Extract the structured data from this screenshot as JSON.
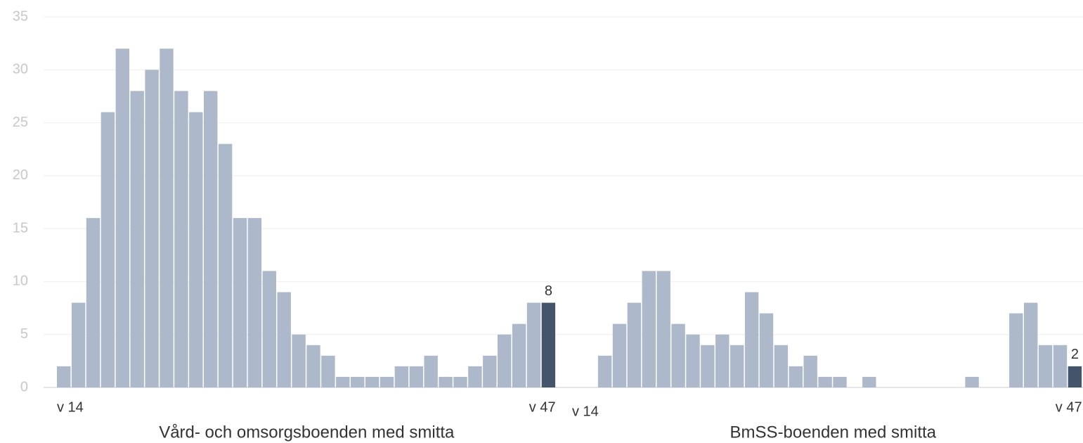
{
  "chart_data": [
    {
      "type": "bar",
      "xlabel": "Vård- och omsorgsboenden med smitta",
      "categories": [
        "v 14",
        null,
        null,
        null,
        null,
        null,
        null,
        null,
        null,
        null,
        null,
        null,
        null,
        null,
        null,
        null,
        null,
        null,
        null,
        null,
        null,
        null,
        null,
        null,
        null,
        null,
        null,
        null,
        null,
        null,
        null,
        null,
        null,
        "v 47"
      ],
      "values": [
        2,
        8,
        16,
        26,
        32,
        28,
        30,
        32,
        28,
        26,
        28,
        23,
        16,
        16,
        11,
        9,
        5,
        4,
        3,
        1,
        1,
        1,
        1,
        2,
        2,
        3,
        1,
        1,
        2,
        3,
        5,
        6,
        8,
        8
      ],
      "color": "#adb9ca",
      "highlight_color": "#44546a",
      "ylim": [
        0,
        35
      ],
      "yticks": [
        0,
        5,
        10,
        15,
        20,
        25,
        30,
        35
      ],
      "grid": true
    },
    {
      "type": "bar",
      "xlabel": "BmSS-boenden med smitta",
      "categories": [
        "v 14",
        null,
        null,
        null,
        null,
        null,
        null,
        null,
        null,
        null,
        null,
        null,
        null,
        null,
        null,
        null,
        null,
        null,
        null,
        null,
        null,
        null,
        null,
        null,
        null,
        null,
        null,
        null,
        null,
        null,
        null,
        null,
        null,
        "v 47"
      ],
      "values": [
        0,
        3,
        6,
        8,
        11,
        11,
        6,
        5,
        4,
        5,
        4,
        9,
        7,
        4,
        2,
        3,
        1,
        1,
        0,
        1,
        0,
        0,
        0,
        0,
        0,
        0,
        1,
        0,
        0,
        7,
        8,
        4,
        4,
        2
      ],
      "color": "#adb9ca",
      "highlight_color": "#44546a",
      "ylim": [
        0,
        35
      ]
    }
  ]
}
